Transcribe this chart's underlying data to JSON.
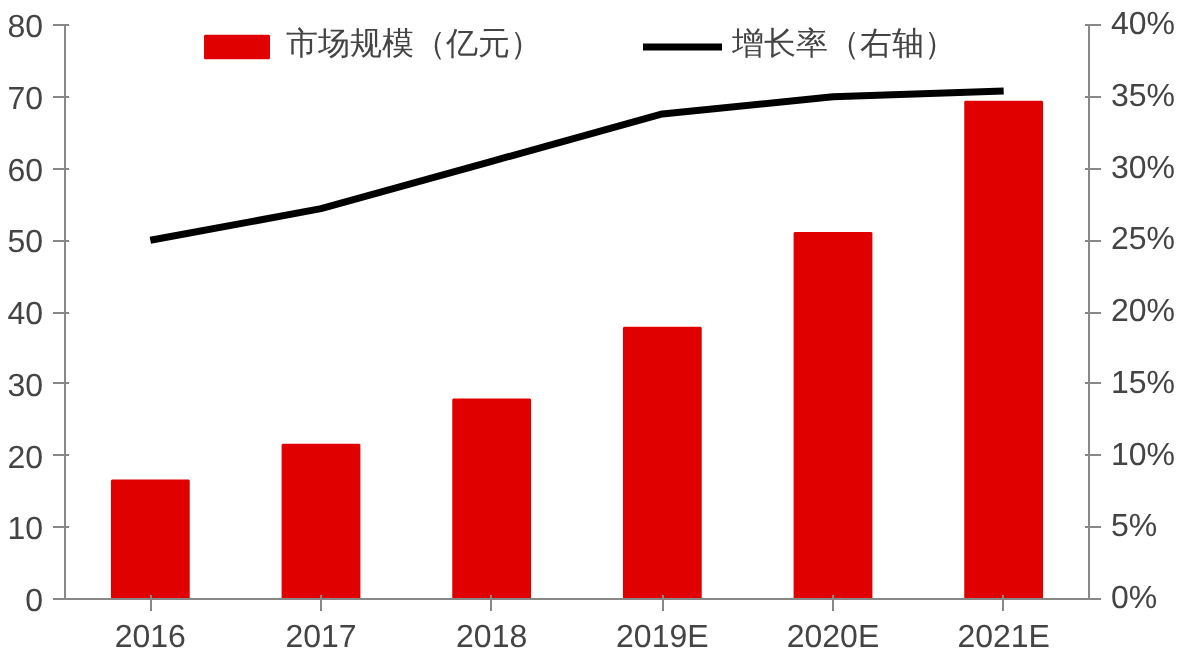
{
  "chart_data": {
    "type": "bar",
    "categories": [
      "2016",
      "2017",
      "2018",
      "2019E",
      "2020E",
      "2021E"
    ],
    "series": [
      {
        "name": "市场规模（亿元）",
        "color": "#e00000",
        "values": [
          16.5,
          21.5,
          27.8,
          37.8,
          51,
          69.3
        ]
      },
      {
        "name": "增长率（右轴）",
        "type": "line",
        "axis": "y2",
        "color": "#000000",
        "values": [
          25,
          27.2,
          30.5,
          33.8,
          35,
          35.4
        ]
      }
    ],
    "ylim": [
      0,
      80
    ],
    "yticks": [
      0,
      10,
      20,
      30,
      40,
      50,
      60,
      70,
      80
    ],
    "y2lim": [
      0,
      40
    ],
    "y2ticks": [
      {
        "value": 0,
        "label": "0%"
      },
      {
        "value": 5,
        "label": "5%"
      },
      {
        "value": 10,
        "label": "10%"
      },
      {
        "value": 15,
        "label": "15%"
      },
      {
        "value": 20,
        "label": "20%"
      },
      {
        "value": 25,
        "label": "25%"
      },
      {
        "value": 30,
        "label": "30%"
      },
      {
        "value": 35,
        "label": "35%"
      },
      {
        "value": 40,
        "label": "40%"
      }
    ],
    "grid": false,
    "legend": "top",
    "marker": "none",
    "line_style": "solid"
  }
}
